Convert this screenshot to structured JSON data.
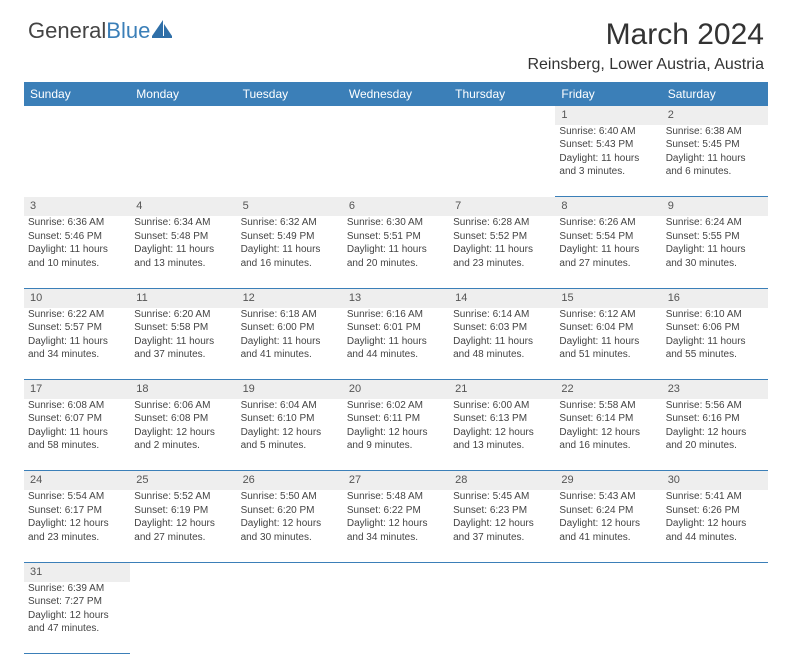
{
  "brand": {
    "part1": "General",
    "part2": "Blue"
  },
  "title": "March 2024",
  "location": "Reinsberg, Lower Austria, Austria",
  "colors": {
    "header_bg": "#3b7fb8",
    "header_text": "#ffffff",
    "daynum_bg": "#eeeeee",
    "cell_border": "#3b7fb8",
    "page_bg": "#ffffff",
    "text": "#444444"
  },
  "day_headers": [
    "Sunday",
    "Monday",
    "Tuesday",
    "Wednesday",
    "Thursday",
    "Friday",
    "Saturday"
  ],
  "weeks": [
    {
      "nums": [
        "",
        "",
        "",
        "",
        "",
        "1",
        "2"
      ],
      "cells": [
        null,
        null,
        null,
        null,
        null,
        {
          "sunrise": "Sunrise: 6:40 AM",
          "sunset": "Sunset: 5:43 PM",
          "day1": "Daylight: 11 hours",
          "day2": "and 3 minutes."
        },
        {
          "sunrise": "Sunrise: 6:38 AM",
          "sunset": "Sunset: 5:45 PM",
          "day1": "Daylight: 11 hours",
          "day2": "and 6 minutes."
        }
      ]
    },
    {
      "nums": [
        "3",
        "4",
        "5",
        "6",
        "7",
        "8",
        "9"
      ],
      "cells": [
        {
          "sunrise": "Sunrise: 6:36 AM",
          "sunset": "Sunset: 5:46 PM",
          "day1": "Daylight: 11 hours",
          "day2": "and 10 minutes."
        },
        {
          "sunrise": "Sunrise: 6:34 AM",
          "sunset": "Sunset: 5:48 PM",
          "day1": "Daylight: 11 hours",
          "day2": "and 13 minutes."
        },
        {
          "sunrise": "Sunrise: 6:32 AM",
          "sunset": "Sunset: 5:49 PM",
          "day1": "Daylight: 11 hours",
          "day2": "and 16 minutes."
        },
        {
          "sunrise": "Sunrise: 6:30 AM",
          "sunset": "Sunset: 5:51 PM",
          "day1": "Daylight: 11 hours",
          "day2": "and 20 minutes."
        },
        {
          "sunrise": "Sunrise: 6:28 AM",
          "sunset": "Sunset: 5:52 PM",
          "day1": "Daylight: 11 hours",
          "day2": "and 23 minutes."
        },
        {
          "sunrise": "Sunrise: 6:26 AM",
          "sunset": "Sunset: 5:54 PM",
          "day1": "Daylight: 11 hours",
          "day2": "and 27 minutes."
        },
        {
          "sunrise": "Sunrise: 6:24 AM",
          "sunset": "Sunset: 5:55 PM",
          "day1": "Daylight: 11 hours",
          "day2": "and 30 minutes."
        }
      ]
    },
    {
      "nums": [
        "10",
        "11",
        "12",
        "13",
        "14",
        "15",
        "16"
      ],
      "cells": [
        {
          "sunrise": "Sunrise: 6:22 AM",
          "sunset": "Sunset: 5:57 PM",
          "day1": "Daylight: 11 hours",
          "day2": "and 34 minutes."
        },
        {
          "sunrise": "Sunrise: 6:20 AM",
          "sunset": "Sunset: 5:58 PM",
          "day1": "Daylight: 11 hours",
          "day2": "and 37 minutes."
        },
        {
          "sunrise": "Sunrise: 6:18 AM",
          "sunset": "Sunset: 6:00 PM",
          "day1": "Daylight: 11 hours",
          "day2": "and 41 minutes."
        },
        {
          "sunrise": "Sunrise: 6:16 AM",
          "sunset": "Sunset: 6:01 PM",
          "day1": "Daylight: 11 hours",
          "day2": "and 44 minutes."
        },
        {
          "sunrise": "Sunrise: 6:14 AM",
          "sunset": "Sunset: 6:03 PM",
          "day1": "Daylight: 11 hours",
          "day2": "and 48 minutes."
        },
        {
          "sunrise": "Sunrise: 6:12 AM",
          "sunset": "Sunset: 6:04 PM",
          "day1": "Daylight: 11 hours",
          "day2": "and 51 minutes."
        },
        {
          "sunrise": "Sunrise: 6:10 AM",
          "sunset": "Sunset: 6:06 PM",
          "day1": "Daylight: 11 hours",
          "day2": "and 55 minutes."
        }
      ]
    },
    {
      "nums": [
        "17",
        "18",
        "19",
        "20",
        "21",
        "22",
        "23"
      ],
      "cells": [
        {
          "sunrise": "Sunrise: 6:08 AM",
          "sunset": "Sunset: 6:07 PM",
          "day1": "Daylight: 11 hours",
          "day2": "and 58 minutes."
        },
        {
          "sunrise": "Sunrise: 6:06 AM",
          "sunset": "Sunset: 6:08 PM",
          "day1": "Daylight: 12 hours",
          "day2": "and 2 minutes."
        },
        {
          "sunrise": "Sunrise: 6:04 AM",
          "sunset": "Sunset: 6:10 PM",
          "day1": "Daylight: 12 hours",
          "day2": "and 5 minutes."
        },
        {
          "sunrise": "Sunrise: 6:02 AM",
          "sunset": "Sunset: 6:11 PM",
          "day1": "Daylight: 12 hours",
          "day2": "and 9 minutes."
        },
        {
          "sunrise": "Sunrise: 6:00 AM",
          "sunset": "Sunset: 6:13 PM",
          "day1": "Daylight: 12 hours",
          "day2": "and 13 minutes."
        },
        {
          "sunrise": "Sunrise: 5:58 AM",
          "sunset": "Sunset: 6:14 PM",
          "day1": "Daylight: 12 hours",
          "day2": "and 16 minutes."
        },
        {
          "sunrise": "Sunrise: 5:56 AM",
          "sunset": "Sunset: 6:16 PM",
          "day1": "Daylight: 12 hours",
          "day2": "and 20 minutes."
        }
      ]
    },
    {
      "nums": [
        "24",
        "25",
        "26",
        "27",
        "28",
        "29",
        "30"
      ],
      "cells": [
        {
          "sunrise": "Sunrise: 5:54 AM",
          "sunset": "Sunset: 6:17 PM",
          "day1": "Daylight: 12 hours",
          "day2": "and 23 minutes."
        },
        {
          "sunrise": "Sunrise: 5:52 AM",
          "sunset": "Sunset: 6:19 PM",
          "day1": "Daylight: 12 hours",
          "day2": "and 27 minutes."
        },
        {
          "sunrise": "Sunrise: 5:50 AM",
          "sunset": "Sunset: 6:20 PM",
          "day1": "Daylight: 12 hours",
          "day2": "and 30 minutes."
        },
        {
          "sunrise": "Sunrise: 5:48 AM",
          "sunset": "Sunset: 6:22 PM",
          "day1": "Daylight: 12 hours",
          "day2": "and 34 minutes."
        },
        {
          "sunrise": "Sunrise: 5:45 AM",
          "sunset": "Sunset: 6:23 PM",
          "day1": "Daylight: 12 hours",
          "day2": "and 37 minutes."
        },
        {
          "sunrise": "Sunrise: 5:43 AM",
          "sunset": "Sunset: 6:24 PM",
          "day1": "Daylight: 12 hours",
          "day2": "and 41 minutes."
        },
        {
          "sunrise": "Sunrise: 5:41 AM",
          "sunset": "Sunset: 6:26 PM",
          "day1": "Daylight: 12 hours",
          "day2": "and 44 minutes."
        }
      ]
    },
    {
      "nums": [
        "31",
        "",
        "",
        "",
        "",
        "",
        ""
      ],
      "cells": [
        {
          "sunrise": "Sunrise: 6:39 AM",
          "sunset": "Sunset: 7:27 PM",
          "day1": "Daylight: 12 hours",
          "day2": "and 47 minutes."
        },
        null,
        null,
        null,
        null,
        null,
        null
      ]
    }
  ]
}
